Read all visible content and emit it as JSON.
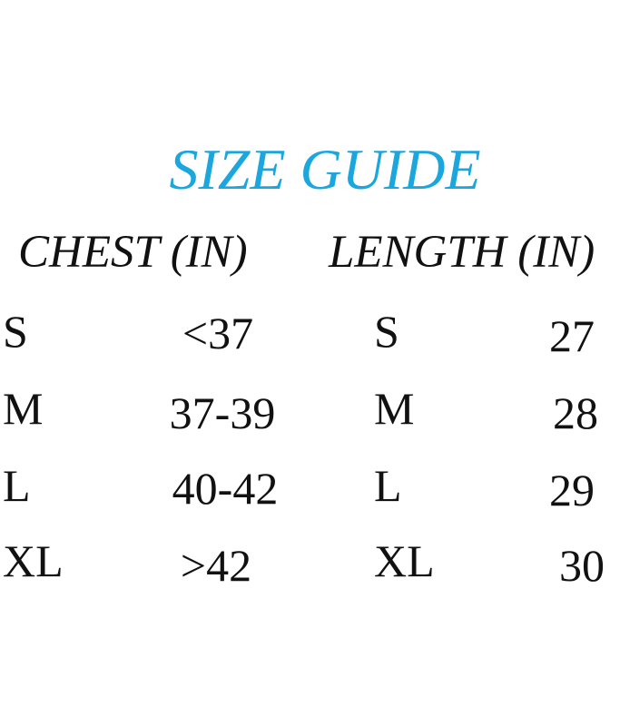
{
  "title": "SIZE GUIDE",
  "title_color": "#1ba6de",
  "headers": {
    "chest": "CHEST (IN)",
    "length": "LENGTH (IN)"
  },
  "chest": [
    {
      "size": "S",
      "value": "<37"
    },
    {
      "size": "M",
      "value": "37-39"
    },
    {
      "size": "L",
      "value": "40-42"
    },
    {
      "size": "XL",
      "value": ">42"
    }
  ],
  "length": [
    {
      "size": "S",
      "value": "27"
    },
    {
      "size": "M",
      "value": "28"
    },
    {
      "size": "L",
      "value": "29"
    },
    {
      "size": "XL",
      "value": "30"
    }
  ]
}
